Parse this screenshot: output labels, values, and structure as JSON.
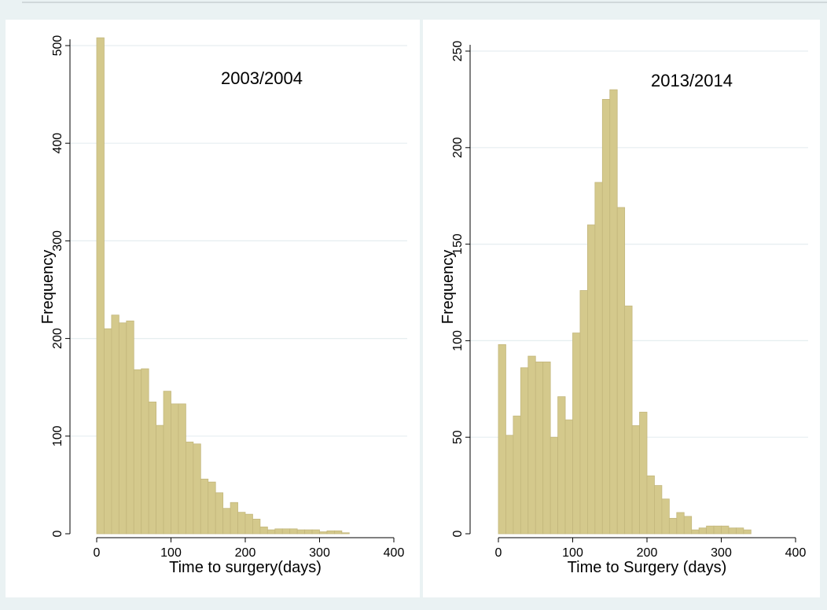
{
  "chart_data": [
    {
      "type": "bar",
      "annotation": "2003/2004",
      "xlabel": "Time to surgery(days)",
      "ylabel": "Frequency",
      "xlim": [
        0,
        400
      ],
      "ylim": [
        0,
        500
      ],
      "x_ticks": [
        0,
        100,
        200,
        300,
        400
      ],
      "y_ticks": [
        0,
        100,
        200,
        300,
        400,
        500
      ],
      "grid": true,
      "bin_width": 10,
      "bins": [
        {
          "x": 0,
          "value": 508
        },
        {
          "x": 10,
          "value": 210
        },
        {
          "x": 20,
          "value": 224
        },
        {
          "x": 30,
          "value": 216
        },
        {
          "x": 40,
          "value": 218
        },
        {
          "x": 50,
          "value": 168
        },
        {
          "x": 60,
          "value": 169
        },
        {
          "x": 70,
          "value": 135
        },
        {
          "x": 80,
          "value": 111
        },
        {
          "x": 90,
          "value": 146
        },
        {
          "x": 100,
          "value": 133
        },
        {
          "x": 110,
          "value": 133
        },
        {
          "x": 120,
          "value": 94
        },
        {
          "x": 130,
          "value": 92
        },
        {
          "x": 140,
          "value": 56
        },
        {
          "x": 150,
          "value": 53
        },
        {
          "x": 160,
          "value": 42
        },
        {
          "x": 170,
          "value": 26
        },
        {
          "x": 180,
          "value": 32
        },
        {
          "x": 190,
          "value": 22
        },
        {
          "x": 200,
          "value": 20
        },
        {
          "x": 210,
          "value": 15
        },
        {
          "x": 220,
          "value": 7
        },
        {
          "x": 230,
          "value": 4
        },
        {
          "x": 240,
          "value": 5
        },
        {
          "x": 250,
          "value": 5
        },
        {
          "x": 260,
          "value": 5
        },
        {
          "x": 270,
          "value": 4
        },
        {
          "x": 280,
          "value": 4
        },
        {
          "x": 290,
          "value": 4
        },
        {
          "x": 300,
          "value": 2
        },
        {
          "x": 310,
          "value": 3
        },
        {
          "x": 320,
          "value": 3
        },
        {
          "x": 330,
          "value": 1
        }
      ]
    },
    {
      "type": "bar",
      "annotation": "2013/2014",
      "xlabel": "Time to Surgery (days)",
      "ylabel": "Frequency",
      "xlim": [
        0,
        400
      ],
      "ylim": [
        0,
        250
      ],
      "x_ticks": [
        0,
        100,
        200,
        300,
        400
      ],
      "y_ticks": [
        0,
        50,
        100,
        150,
        200,
        250
      ],
      "grid": true,
      "bin_width": 10,
      "bins": [
        {
          "x": 0,
          "value": 98
        },
        {
          "x": 10,
          "value": 51
        },
        {
          "x": 20,
          "value": 61
        },
        {
          "x": 30,
          "value": 86
        },
        {
          "x": 40,
          "value": 92
        },
        {
          "x": 50,
          "value": 89
        },
        {
          "x": 60,
          "value": 89
        },
        {
          "x": 70,
          "value": 50
        },
        {
          "x": 80,
          "value": 71
        },
        {
          "x": 90,
          "value": 59
        },
        {
          "x": 100,
          "value": 104
        },
        {
          "x": 110,
          "value": 126
        },
        {
          "x": 120,
          "value": 160
        },
        {
          "x": 130,
          "value": 182
        },
        {
          "x": 140,
          "value": 225
        },
        {
          "x": 150,
          "value": 230
        },
        {
          "x": 160,
          "value": 169
        },
        {
          "x": 170,
          "value": 118
        },
        {
          "x": 180,
          "value": 56
        },
        {
          "x": 190,
          "value": 63
        },
        {
          "x": 200,
          "value": 30
        },
        {
          "x": 210,
          "value": 25
        },
        {
          "x": 220,
          "value": 18
        },
        {
          "x": 230,
          "value": 8
        },
        {
          "x": 240,
          "value": 11
        },
        {
          "x": 250,
          "value": 9
        },
        {
          "x": 260,
          "value": 2
        },
        {
          "x": 270,
          "value": 3
        },
        {
          "x": 280,
          "value": 4
        },
        {
          "x": 290,
          "value": 4
        },
        {
          "x": 300,
          "value": 4
        },
        {
          "x": 310,
          "value": 3
        },
        {
          "x": 320,
          "value": 3
        },
        {
          "x": 330,
          "value": 2
        }
      ]
    }
  ],
  "colors": {
    "background": "#eaf2f3",
    "panel": "#ffffff",
    "bar_fill": "#d4c98c",
    "bar_stroke": "#c3b77c",
    "grid": "#e6eef0",
    "axis": "#000000"
  }
}
